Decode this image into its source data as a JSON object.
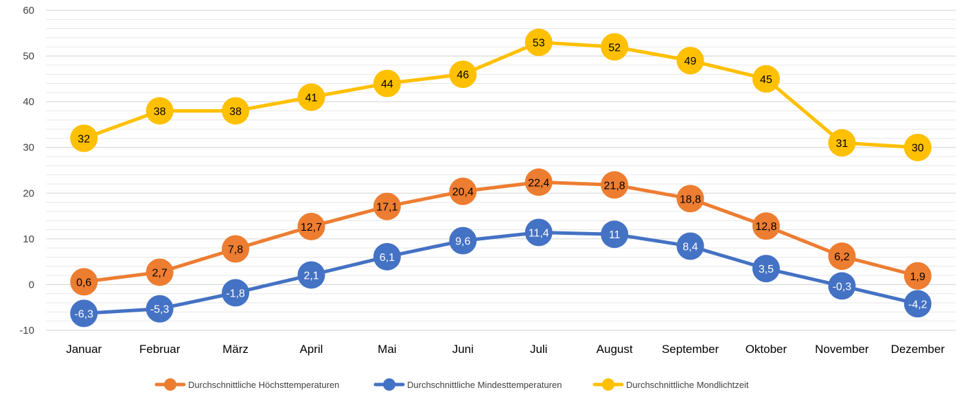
{
  "chart_data": {
    "type": "line",
    "title": "",
    "xlabel": "",
    "ylabel": "",
    "categories": [
      "Januar",
      "Februar",
      "März",
      "April",
      "Mai",
      "Juni",
      "Juli",
      "August",
      "September",
      "Oktober",
      "November",
      "Dezember"
    ],
    "ylim": [
      -10,
      60
    ],
    "yticks": [
      -10,
      0,
      10,
      20,
      30,
      40,
      50,
      60
    ],
    "grid": true,
    "legend_position": "bottom",
    "series": [
      {
        "name": "Durchschnittliche Höchsttemperaturen",
        "color": "#ED7D31",
        "values": [
          0.6,
          2.7,
          7.8,
          12.7,
          17.1,
          20.4,
          22.4,
          21.8,
          18.8,
          12.8,
          6.2,
          1.9
        ],
        "labels": [
          "0,6",
          "2,7",
          "7,8",
          "12,7",
          "17,1",
          "20,4",
          "22,4",
          "21,8",
          "18,8",
          "12,8",
          "6,2",
          "1,9"
        ],
        "label_color": "#000000"
      },
      {
        "name": "Durchschnittliche Mindesttemperaturen",
        "color": "#4472C4",
        "values": [
          -6.3,
          -5.3,
          -1.8,
          2.1,
          6.1,
          9.6,
          11.4,
          11,
          8.4,
          3.5,
          -0.3,
          -4.2
        ],
        "labels": [
          "-6,3",
          "-5,3",
          "-1,8",
          "2,1",
          "6,1",
          "9,6",
          "11,4",
          "11",
          "8,4",
          "3,5",
          "-0,3",
          "-4,2"
        ],
        "label_color": "#ffffff"
      },
      {
        "name": "Durchschnittliche Mondlichtzeit",
        "color": "#FFC000",
        "values": [
          32,
          38,
          38,
          41,
          44,
          46,
          53,
          52,
          49,
          45,
          31,
          30
        ],
        "labels": [
          "32",
          "38",
          "38",
          "41",
          "44",
          "46",
          "53",
          "52",
          "49",
          "45",
          "31",
          "30"
        ],
        "label_color": "#000000"
      }
    ]
  }
}
